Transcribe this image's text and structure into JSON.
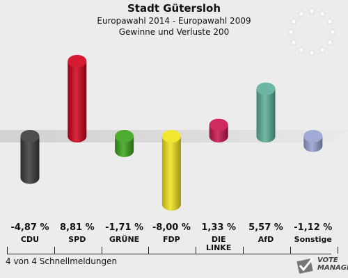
{
  "header": {
    "title": "Stadt Gütersloh",
    "subtitle1": "Europawahl 2014 - Europawahl 2009",
    "subtitle2": "Gewinne und Verluste 200"
  },
  "chart_data": {
    "type": "bar",
    "title": "Stadt Gütersloh",
    "categories": [
      "CDU",
      "SPD",
      "GRÜNE",
      "FDP",
      "DIE LINKE",
      "AfD",
      "Sonstige"
    ],
    "values": [
      -4.87,
      8.81,
      -1.71,
      -8.0,
      1.33,
      5.57,
      -1.12
    ],
    "value_labels": [
      "-4,87 %",
      "8,81 %",
      "-1,71 %",
      "-8,00 %",
      "1,33 %",
      "5,57 %",
      "-1,12 %"
    ],
    "colors": [
      "#3a3a3a",
      "#d0021b",
      "#3aa31a",
      "#f1e31b",
      "#c8144c",
      "#5aae9a",
      "#95a1d0"
    ],
    "ylim": [
      -9,
      9
    ],
    "xlabel": "",
    "ylabel": "",
    "grid": false,
    "legend": "none"
  },
  "footer": {
    "text": "4 von 4 Schnellmeldungen"
  },
  "logo": {
    "line1": "VOTE",
    "line2": "MANAGER"
  }
}
